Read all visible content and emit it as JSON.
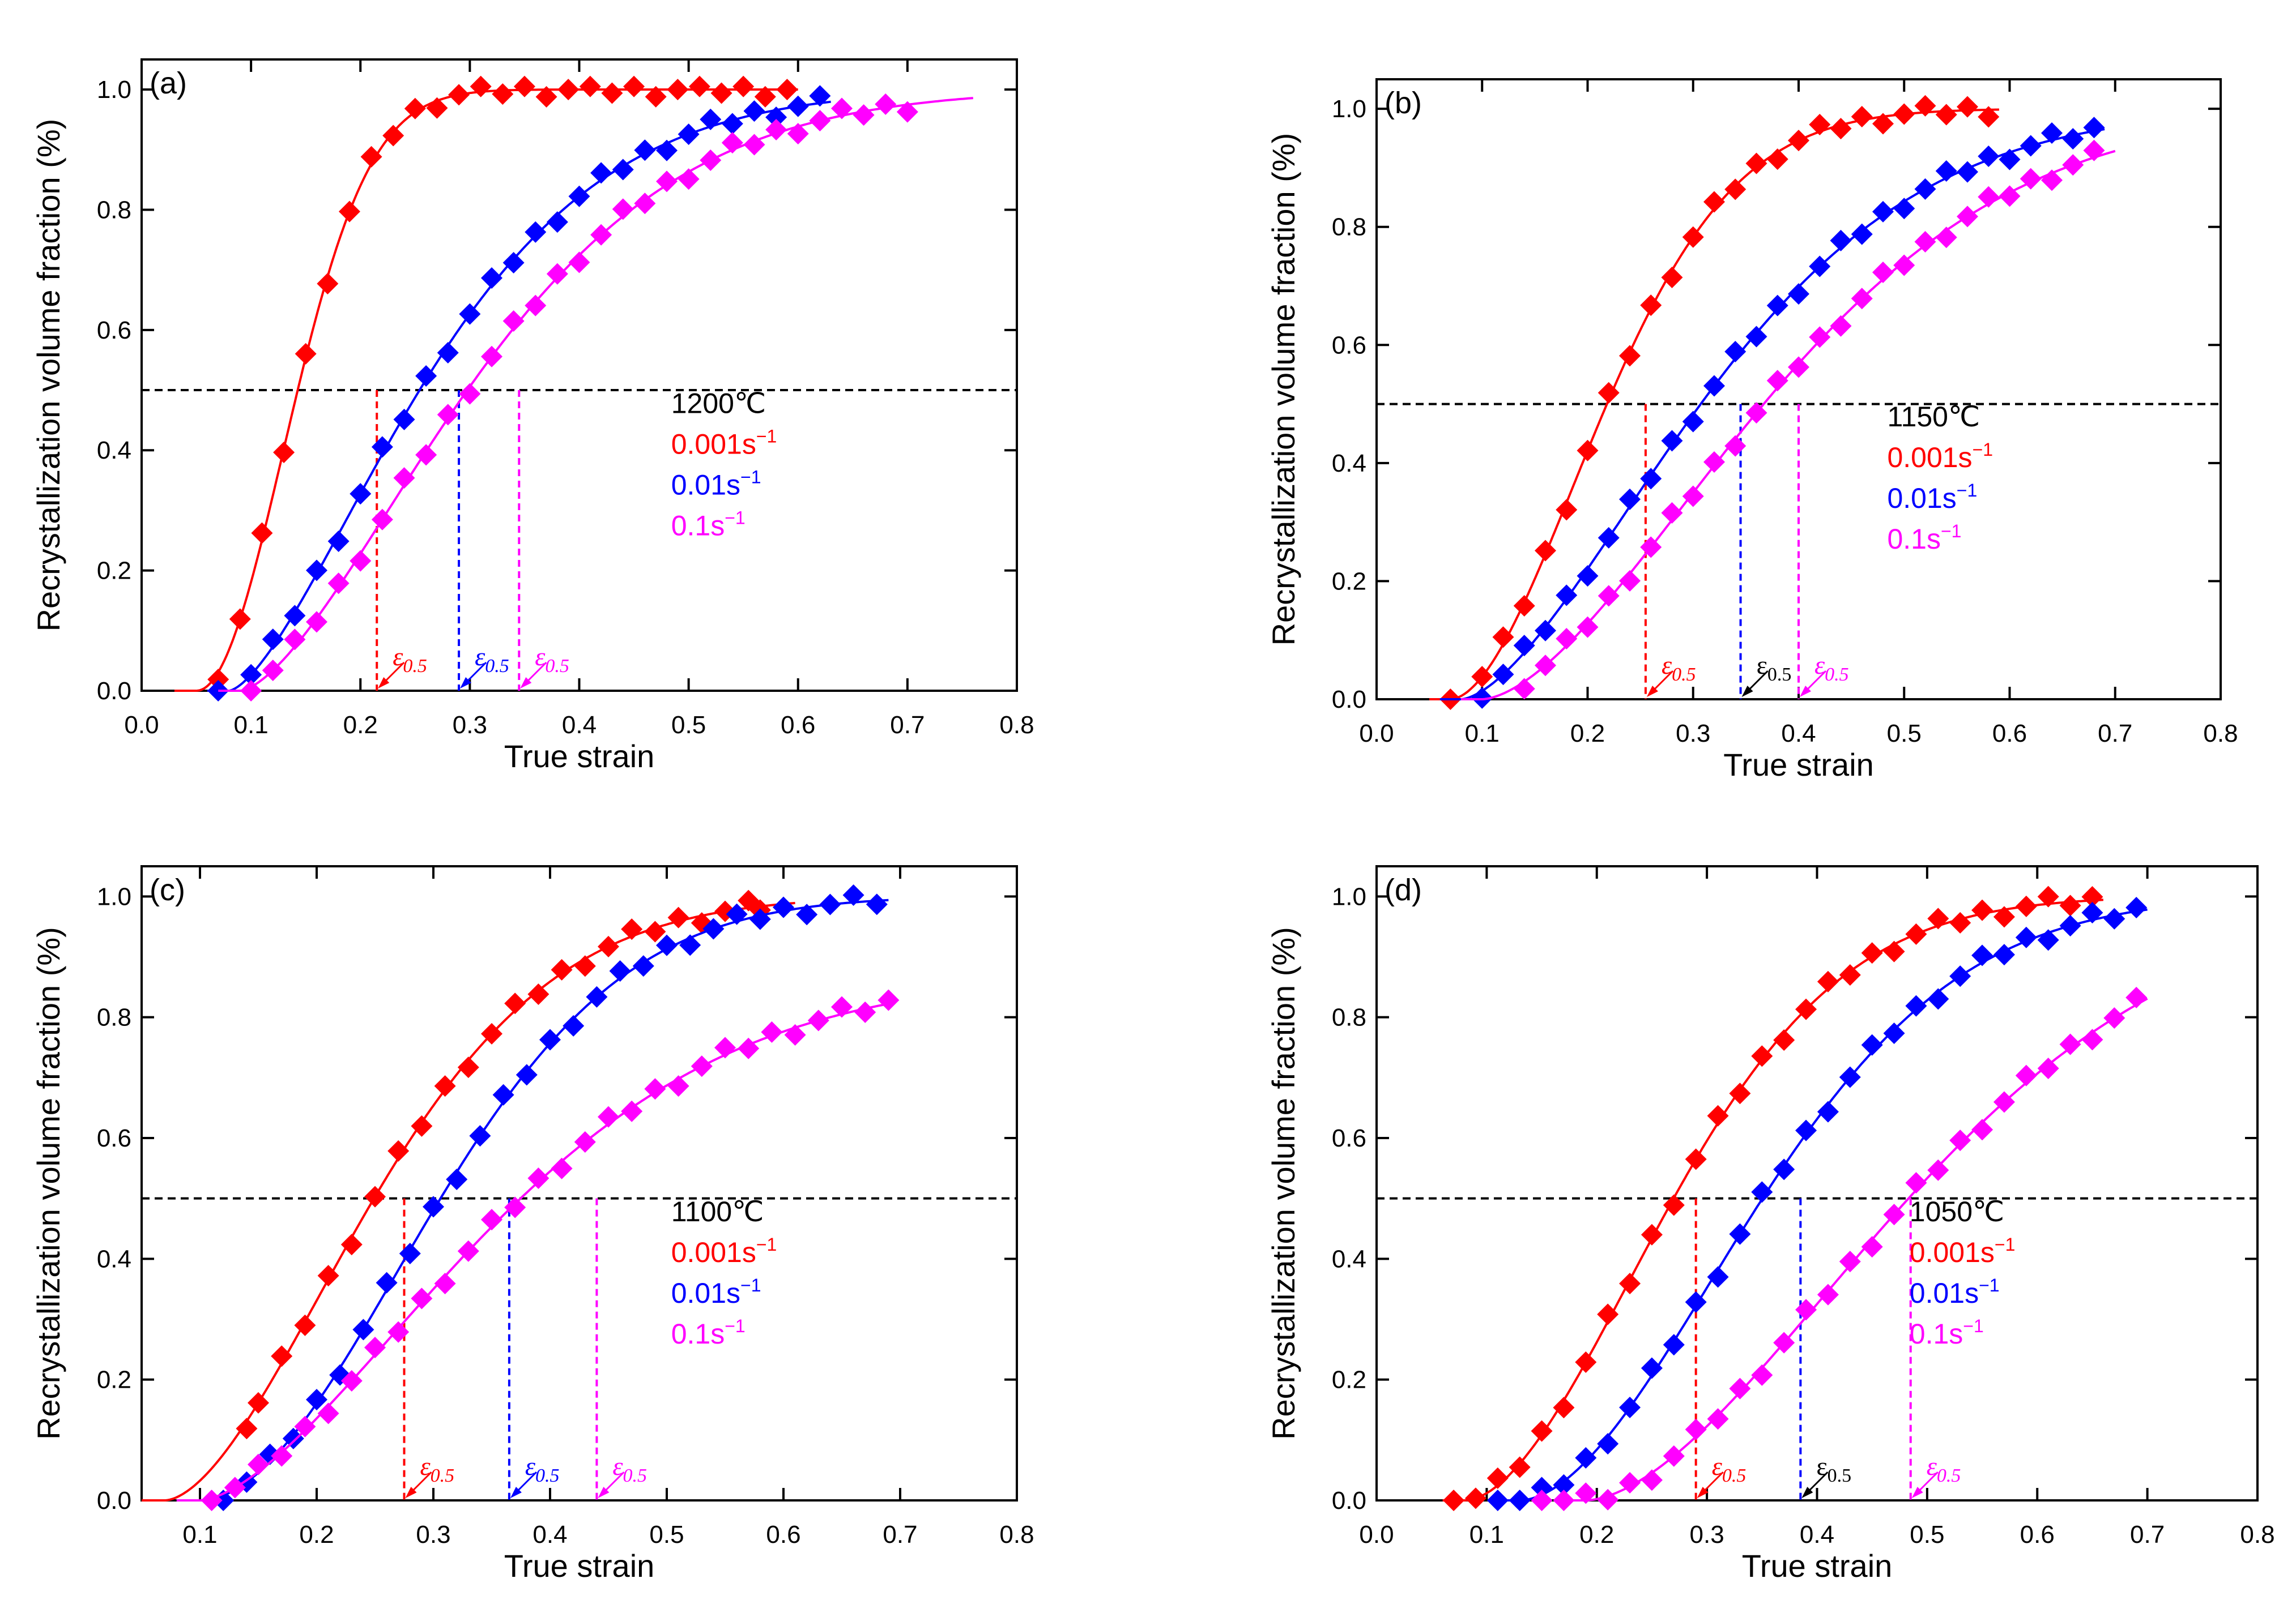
{
  "colors": {
    "r001": "#ff0000",
    "r01": "#0000ff",
    "r1": "#ff00ff",
    "axis": "#000000",
    "eps_black": "#000000"
  },
  "chart_data": [
    {
      "panel": "(a)",
      "type": "scatter",
      "xlabel": "True strain",
      "ylabel": "Recrystallization volume fraction (%)",
      "xlim": [
        0.0,
        0.8
      ],
      "ylim": [
        0.0,
        1.05
      ],
      "xticks": [
        "0.0",
        "0.1",
        "0.2",
        "0.3",
        "0.4",
        "0.5",
        "0.6",
        "0.7",
        "0.8"
      ],
      "yticks": [
        "0.0",
        "0.2",
        "0.4",
        "0.6",
        "0.8",
        "1.0"
      ],
      "threshold": 0.5,
      "legend": {
        "temperature": "1200℃",
        "entries": [
          {
            "label": "0.001s",
            "sup": "−1",
            "color_key": "r001"
          },
          {
            "label": "0.01s",
            "sup": "−1",
            "color_key": "r01"
          },
          {
            "label": "0.1s",
            "sup": "−1",
            "color_key": "r1"
          }
        ]
      },
      "series": [
        {
          "name": "0.001s-1",
          "color_key": "r001",
          "fit": {
            "x0": 0.05,
            "k": 9.0,
            "n": 2.02,
            "xmax": 0.6
          },
          "markers": [
            0.07,
            0.09,
            0.11,
            0.13,
            0.15,
            0.17,
            0.19,
            0.21,
            0.23,
            0.25,
            0.27,
            0.29,
            0.31,
            0.33,
            0.35,
            0.37,
            0.39,
            0.41,
            0.43,
            0.45,
            0.47,
            0.49,
            0.51,
            0.53,
            0.55,
            0.57,
            0.59
          ],
          "eps_x": 0.215,
          "eps_label_italic": true,
          "eps_color_key": "r001"
        },
        {
          "name": "0.01s-1",
          "color_key": "r01",
          "fit": {
            "x0": 0.08,
            "k": 4.5,
            "n": 1.5,
            "xmax": 0.63
          },
          "markers": [
            0.07,
            0.1,
            0.12,
            0.14,
            0.16,
            0.18,
            0.2,
            0.22,
            0.24,
            0.26,
            0.28,
            0.3,
            0.32,
            0.34,
            0.36,
            0.38,
            0.4,
            0.42,
            0.44,
            0.46,
            0.48,
            0.5,
            0.52,
            0.54,
            0.56,
            0.58,
            0.6,
            0.62
          ],
          "eps_x": 0.29,
          "eps_label_italic": true,
          "eps_color_key": "r01"
        },
        {
          "name": "0.1s-1",
          "color_key": "r1",
          "fit": {
            "x0": 0.09,
            "k": 3.8,
            "n": 1.55,
            "xmax": 0.76
          },
          "markers": [
            0.1,
            0.12,
            0.14,
            0.16,
            0.18,
            0.2,
            0.22,
            0.24,
            0.26,
            0.28,
            0.3,
            0.32,
            0.34,
            0.36,
            0.38,
            0.4,
            0.42,
            0.44,
            0.46,
            0.48,
            0.5,
            0.52,
            0.54,
            0.56,
            0.58,
            0.6,
            0.62,
            0.64,
            0.66,
            0.68,
            0.7
          ],
          "eps_x": 0.345,
          "eps_label_italic": true,
          "eps_color_key": "r1"
        }
      ]
    },
    {
      "panel": "(b)",
      "type": "scatter",
      "xlabel": "True strain",
      "ylabel": "Recrystallization volume fraction (%)",
      "xlim": [
        0.0,
        0.8
      ],
      "ylim": [
        0.0,
        1.05
      ],
      "xticks": [
        "0.0",
        "0.1",
        "0.2",
        "0.3",
        "0.4",
        "0.5",
        "0.6",
        "0.7",
        "0.8"
      ],
      "yticks": [
        "0.0",
        "0.2",
        "0.4",
        "0.6",
        "0.8",
        "1.0"
      ],
      "threshold": 0.5,
      "legend": {
        "temperature": "1150℃",
        "entries": [
          {
            "label": "0.001s",
            "sup": "−1",
            "color_key": "r001"
          },
          {
            "label": "0.01s",
            "sup": "−1",
            "color_key": "r01"
          },
          {
            "label": "0.1s",
            "sup": "−1",
            "color_key": "r1"
          }
        ]
      },
      "series": [
        {
          "name": "0.001s-1",
          "color_key": "r001",
          "fit": {
            "x0": 0.07,
            "k": 5.5,
            "n": 1.8,
            "xmax": 0.59
          },
          "markers": [
            0.07,
            0.1,
            0.12,
            0.14,
            0.16,
            0.18,
            0.2,
            0.22,
            0.24,
            0.26,
            0.28,
            0.3,
            0.32,
            0.34,
            0.36,
            0.38,
            0.4,
            0.42,
            0.44,
            0.46,
            0.48,
            0.5,
            0.52,
            0.54,
            0.56,
            0.58
          ],
          "eps_x": 0.255,
          "eps_label_italic": true,
          "eps_color_key": "r001"
        },
        {
          "name": "0.01s-1",
          "color_key": "r01",
          "fit": {
            "x0": 0.08,
            "k": 3.5,
            "n": 1.6,
            "xmax": 0.69
          },
          "markers": [
            0.1,
            0.12,
            0.14,
            0.16,
            0.18,
            0.2,
            0.22,
            0.24,
            0.26,
            0.28,
            0.3,
            0.32,
            0.34,
            0.36,
            0.38,
            0.4,
            0.42,
            0.44,
            0.46,
            0.48,
            0.5,
            0.52,
            0.54,
            0.56,
            0.58,
            0.6,
            0.62,
            0.64,
            0.66,
            0.68
          ],
          "eps_x": 0.345,
          "eps_label_italic": false,
          "eps_color_key": "eps_black"
        },
        {
          "name": "0.1s-1",
          "color_key": "r1",
          "fit": {
            "x0": 0.1,
            "k": 3.0,
            "n": 1.65,
            "xmax": 0.7
          },
          "markers": [
            0.14,
            0.16,
            0.18,
            0.2,
            0.22,
            0.24,
            0.26,
            0.28,
            0.3,
            0.32,
            0.34,
            0.36,
            0.38,
            0.4,
            0.42,
            0.44,
            0.46,
            0.48,
            0.5,
            0.52,
            0.54,
            0.56,
            0.58,
            0.6,
            0.62,
            0.64,
            0.66,
            0.68
          ],
          "eps_x": 0.4,
          "eps_label_italic": true,
          "eps_color_key": "r1"
        }
      ]
    },
    {
      "panel": "(c)",
      "type": "scatter",
      "xlabel": "True strain",
      "ylabel": "Recrystallization volume fraction (%)",
      "xlim": [
        0.05,
        0.8
      ],
      "ylim": [
        0.0,
        1.05
      ],
      "xticks": [
        "0.1",
        "0.2",
        "0.3",
        "0.4",
        "0.5",
        "0.6",
        "0.7",
        "0.8"
      ],
      "yticks": [
        "0.0",
        "0.2",
        "0.4",
        "0.6",
        "0.8",
        "1.0"
      ],
      "threshold": 0.5,
      "legend": {
        "temperature": "1100℃",
        "entries": [
          {
            "label": "0.001s",
            "sup": "−1",
            "color_key": "r001"
          },
          {
            "label": "0.01s",
            "sup": "−1",
            "color_key": "r01"
          },
          {
            "label": "0.1s",
            "sup": "−1",
            "color_key": "r1"
          }
        ]
      },
      "series": [
        {
          "name": "0.001s-1",
          "color_key": "r001",
          "fit": {
            "x0": 0.07,
            "k": 4.5,
            "n": 1.7,
            "xmax": 0.61
          },
          "markers": [
            0.14,
            0.15,
            0.17,
            0.19,
            0.21,
            0.23,
            0.25,
            0.27,
            0.29,
            0.31,
            0.33,
            0.35,
            0.37,
            0.39,
            0.41,
            0.43,
            0.45,
            0.47,
            0.49,
            0.51,
            0.53,
            0.55,
            0.57,
            0.58
          ],
          "eps_x": 0.275,
          "eps_label_italic": true,
          "eps_color_key": "r001"
        },
        {
          "name": "0.01s-1",
          "color_key": "r01",
          "fit": {
            "x0": 0.1,
            "k": 4.0,
            "n": 1.9,
            "xmax": 0.69
          },
          "markers": [
            0.12,
            0.14,
            0.16,
            0.18,
            0.2,
            0.22,
            0.24,
            0.26,
            0.28,
            0.3,
            0.32,
            0.34,
            0.36,
            0.38,
            0.4,
            0.42,
            0.44,
            0.46,
            0.48,
            0.5,
            0.52,
            0.54,
            0.56,
            0.58,
            0.6,
            0.62,
            0.64,
            0.66,
            0.68
          ],
          "eps_x": 0.365,
          "eps_label_italic": true,
          "eps_color_key": "r01"
        },
        {
          "name": "0.1s-1",
          "color_key": "r1",
          "fit": {
            "x0": 0.1,
            "k": 3.3,
            "n": 1.6,
            "ymax": 0.87,
            "xmax": 0.69
          },
          "markers": [
            0.11,
            0.13,
            0.15,
            0.17,
            0.19,
            0.21,
            0.23,
            0.25,
            0.27,
            0.29,
            0.31,
            0.33,
            0.35,
            0.37,
            0.39,
            0.41,
            0.43,
            0.45,
            0.47,
            0.49,
            0.51,
            0.53,
            0.55,
            0.57,
            0.59,
            0.61,
            0.63,
            0.65,
            0.67,
            0.69
          ],
          "eps_x": 0.44,
          "eps_label_italic": true,
          "eps_color_key": "r1"
        }
      ]
    },
    {
      "panel": "(d)",
      "type": "scatter",
      "xlabel": "True strain",
      "ylabel": "Recrystallization volume fraction (%)",
      "xlim": [
        0.0,
        0.8
      ],
      "ylim": [
        0.0,
        1.05
      ],
      "xticks": [
        "0.0",
        "0.1",
        "0.2",
        "0.3",
        "0.4",
        "0.5",
        "0.6",
        "0.7",
        "0.8"
      ],
      "yticks": [
        "0.0",
        "0.2",
        "0.4",
        "0.6",
        "0.8",
        "1.0"
      ],
      "threshold": 0.5,
      "legend": {
        "temperature": "1050℃",
        "entries": [
          {
            "label": "0.001s",
            "sup": "−1",
            "color_key": "r001"
          },
          {
            "label": "0.01s",
            "sup": "−1",
            "color_key": "r01"
          },
          {
            "label": "0.1s",
            "sup": "−1",
            "color_key": "r1"
          }
        ]
      },
      "series": [
        {
          "name": "0.001s-1",
          "color_key": "r001",
          "fit": {
            "x0": 0.08,
            "k": 4.3,
            "n": 1.8,
            "xmax": 0.66
          },
          "markers": [
            0.07,
            0.09,
            0.11,
            0.13,
            0.15,
            0.17,
            0.19,
            0.21,
            0.23,
            0.25,
            0.27,
            0.29,
            0.31,
            0.33,
            0.35,
            0.37,
            0.39,
            0.41,
            0.43,
            0.45,
            0.47,
            0.49,
            0.51,
            0.53,
            0.55,
            0.57,
            0.59,
            0.61,
            0.63,
            0.65
          ],
          "eps_x": 0.29,
          "eps_label_italic": true,
          "eps_color_key": "r001"
        },
        {
          "name": "0.01s-1",
          "color_key": "r01",
          "fit": {
            "x0": 0.13,
            "k": 3.7,
            "n": 1.8,
            "xmax": 0.7
          },
          "markers": [
            0.11,
            0.13,
            0.15,
            0.17,
            0.19,
            0.21,
            0.23,
            0.25,
            0.27,
            0.29,
            0.31,
            0.33,
            0.35,
            0.37,
            0.39,
            0.41,
            0.43,
            0.45,
            0.47,
            0.49,
            0.51,
            0.53,
            0.55,
            0.57,
            0.59,
            0.61,
            0.63,
            0.65,
            0.67,
            0.69
          ],
          "eps_x": 0.385,
          "eps_label_italic": false,
          "eps_color_key": "eps_black"
        },
        {
          "name": "0.1s-1",
          "color_key": "r1",
          "fit": {
            "x0": 0.19,
            "k": 2.75,
            "n": 1.7,
            "xmax": 0.7
          },
          "markers": [
            0.15,
            0.17,
            0.19,
            0.21,
            0.23,
            0.25,
            0.27,
            0.29,
            0.31,
            0.33,
            0.35,
            0.37,
            0.39,
            0.41,
            0.43,
            0.45,
            0.47,
            0.49,
            0.51,
            0.53,
            0.55,
            0.57,
            0.59,
            0.61,
            0.63,
            0.65,
            0.67,
            0.69
          ],
          "eps_x": 0.485,
          "eps_label_italic": true,
          "eps_color_key": "r1"
        }
      ]
    }
  ],
  "epsilon": {
    "symbol": "ε",
    "subscript": "0.5"
  }
}
